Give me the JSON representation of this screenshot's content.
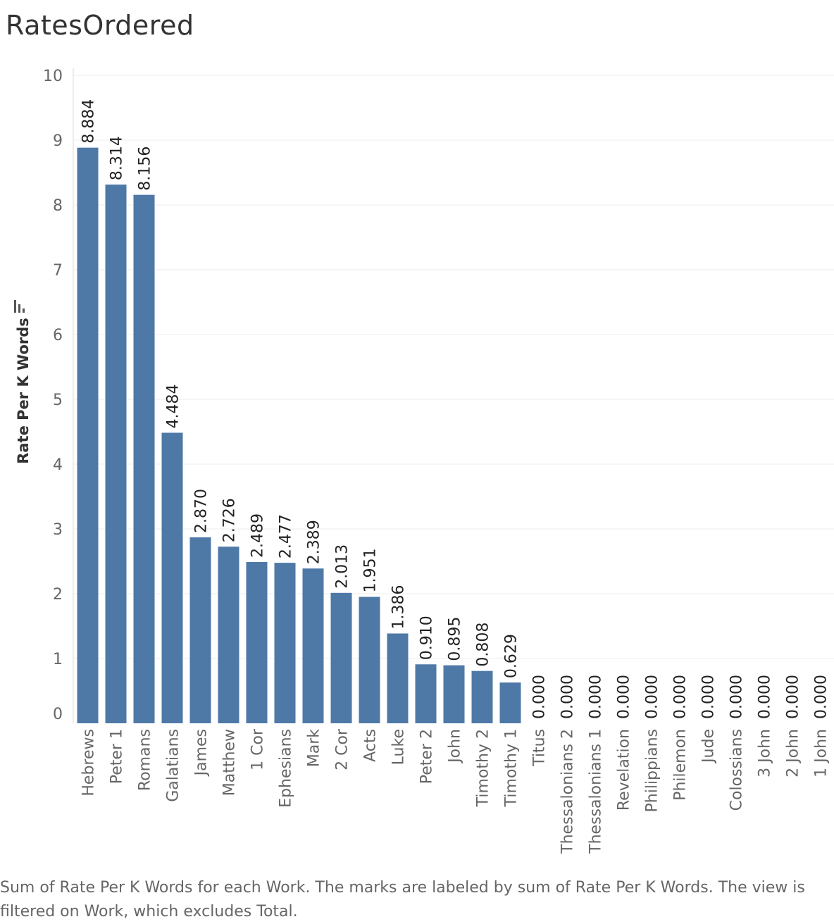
{
  "title": "RatesOrdered",
  "caption": "Sum of Rate Per K Words for each Work.  The marks are labeled by sum of Rate Per K Words. The view is filtered on Work, which excludes Total.",
  "chart_data": {
    "type": "bar",
    "categories": [
      "Hebrews",
      "Peter 1",
      "Romans",
      "Galatians",
      "James",
      "Matthew",
      "1 Cor",
      "Ephesians",
      "Mark",
      "2 Cor",
      "Acts",
      "Luke",
      "Peter 2",
      "John",
      "Timothy 2",
      "Timothy 1",
      "Titus",
      "Thessalonians 2",
      "Thessalonians 1",
      "Revelation",
      "Philippians",
      "Philemon",
      "Jude",
      "Colossians",
      "3 John",
      "2 John",
      "1 John"
    ],
    "values": [
      8.884,
      8.314,
      8.156,
      4.484,
      2.87,
      2.726,
      2.489,
      2.477,
      2.389,
      2.013,
      1.951,
      1.386,
      0.91,
      0.895,
      0.808,
      0.629,
      0.0,
      0.0,
      0.0,
      0.0,
      0.0,
      0.0,
      0.0,
      0.0,
      0.0,
      0.0,
      0.0
    ],
    "value_labels": [
      "8.884",
      "8.314",
      "8.156",
      "4.484",
      "2.870",
      "2.726",
      "2.489",
      "2.477",
      "2.389",
      "2.013",
      "1.951",
      "1.386",
      "0.910",
      "0.895",
      "0.808",
      "0.629",
      "0.000",
      "0.000",
      "0.000",
      "0.000",
      "0.000",
      "0.000",
      "0.000",
      "0.000",
      "0.000",
      "0.000",
      "0.000"
    ],
    "ylabel": "Rate Per K Words",
    "xlabel": "",
    "ylim": [
      0,
      10
    ],
    "yticks": [
      "0",
      "1",
      "2",
      "3",
      "4",
      "5",
      "6",
      "7",
      "8",
      "9",
      "10"
    ],
    "bar_color": "#4e79a7",
    "grid": true,
    "sorted": "descending"
  }
}
